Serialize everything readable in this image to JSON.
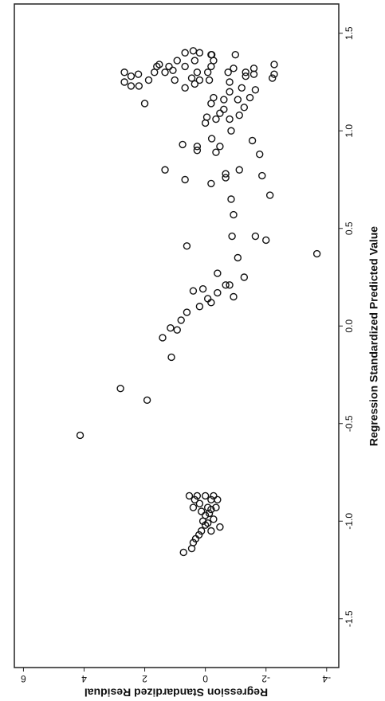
{
  "chart_data": {
    "type": "scatter",
    "x_label": "Regression Standardized Predicted Value",
    "y_label": "Regression Standardized Residual",
    "color": "#111111",
    "xlim": [
      -1.75,
      1.65
    ],
    "ylim": [
      -4.4,
      6.3
    ],
    "xticks": [
      -1.5,
      {
        "value": -1.0,
        "label": "-1.0"
      },
      -0.5,
      {
        "value": 0.0,
        "label": "0.0"
      },
      0.5,
      {
        "value": 1.0,
        "label": "1.0"
      },
      1.5
    ],
    "yticks": [
      -4,
      -2,
      0,
      2,
      4,
      6
    ],
    "x": [
      -0.56,
      -0.32,
      -0.38,
      -0.16,
      -0.06,
      -0.01,
      -0.02,
      0.03,
      0.07,
      0.1,
      0.12,
      0.14,
      0.18,
      0.19,
      0.17,
      0.21,
      0.15,
      0.21,
      0.27,
      0.25,
      0.41,
      0.35,
      0.46,
      0.57,
      0.46,
      0.44,
      0.37,
      0.65,
      0.67,
      0.75,
      0.73,
      0.76,
      0.78,
      0.8,
      0.77,
      0.8,
      0.9,
      0.93,
      0.92,
      0.89,
      0.92,
      0.88,
      0.95,
      0.96,
      1.0,
      1.04,
      1.06,
      1.06,
      1.07,
      1.09,
      1.08,
      1.11,
      1.12,
      1.14,
      1.16,
      1.16,
      1.17,
      1.17,
      1.2,
      1.21,
      1.22,
      1.25,
      1.14,
      1.25,
      1.23,
      1.23,
      1.28,
      1.3,
      1.29,
      1.26,
      1.3,
      1.3,
      1.31,
      1.34,
      1.33,
      1.33,
      1.36,
      1.33,
      1.4,
      1.36,
      1.4,
      1.3,
      1.27,
      1.26,
      1.3,
      1.26,
      1.33,
      1.36,
      1.39,
      1.41,
      1.39,
      1.24,
      1.3,
      1.29,
      1.28,
      1.32,
      1.34,
      1.29,
      1.27,
      1.32,
      1.39,
      1.3,
      1.22,
      1.26,
      -1.16,
      -1.14,
      -1.11,
      -1.09,
      -1.07,
      -1.05,
      -1.02,
      -1.01,
      -1.03,
      -0.99,
      -0.97,
      -0.94,
      -0.93,
      -0.89,
      -0.87,
      -0.87,
      -0.87,
      -0.91,
      -0.93,
      -0.93,
      -0.95,
      -0.96,
      -0.87,
      -0.89,
      -0.89,
      -1.0,
      -1.05
    ],
    "y": [
      4.13,
      2.8,
      1.92,
      1.12,
      1.41,
      1.15,
      0.93,
      0.8,
      0.61,
      0.19,
      -0.19,
      -0.08,
      0.4,
      0.08,
      -0.4,
      -0.67,
      -0.93,
      -0.8,
      -0.4,
      -1.28,
      0.61,
      -1.07,
      -0.88,
      -0.93,
      -1.65,
      -2.0,
      -3.68,
      -0.85,
      -2.13,
      0.67,
      -0.19,
      -0.67,
      -0.67,
      1.33,
      -1.87,
      -1.12,
      0.27,
      0.75,
      0.27,
      -0.35,
      -0.48,
      -1.79,
      -1.55,
      -0.21,
      -0.85,
      0,
      -0.35,
      -0.8,
      -0.05,
      -0.48,
      -1.12,
      -0.61,
      -1.28,
      -0.19,
      -1.07,
      -0.61,
      -0.27,
      -1.47,
      -0.8,
      -1.65,
      -1.2,
      -0.8,
      2.0,
      2.67,
      2.45,
      2.19,
      2.45,
      2.67,
      2.21,
      1.87,
      1.68,
      1.33,
      1.07,
      1.52,
      1.6,
      1.2,
      0.93,
      0.67,
      0.67,
      0.35,
      0.19,
      0.27,
      0.45,
      0.19,
      -0.08,
      -0.13,
      -0.19,
      -0.27,
      -0.19,
      0.4,
      -0.21,
      0.35,
      -1.33,
      -1.6,
      -1.33,
      -1.6,
      -2.27,
      -2.27,
      -2.21,
      -0.93,
      -0.99,
      -0.75,
      0.67,
      1.01,
      0.72,
      0.45,
      0.4,
      0.32,
      0.21,
      0.13,
      0,
      -0.08,
      -0.48,
      -0.27,
      0,
      -0.19,
      -0.35,
      -0.19,
      0,
      0.27,
      0.53,
      0.19,
      -0.08,
      0.4,
      0.13,
      -0.13,
      -0.27,
      -0.4,
      0.35,
      0.08,
      -0.19
    ]
  }
}
